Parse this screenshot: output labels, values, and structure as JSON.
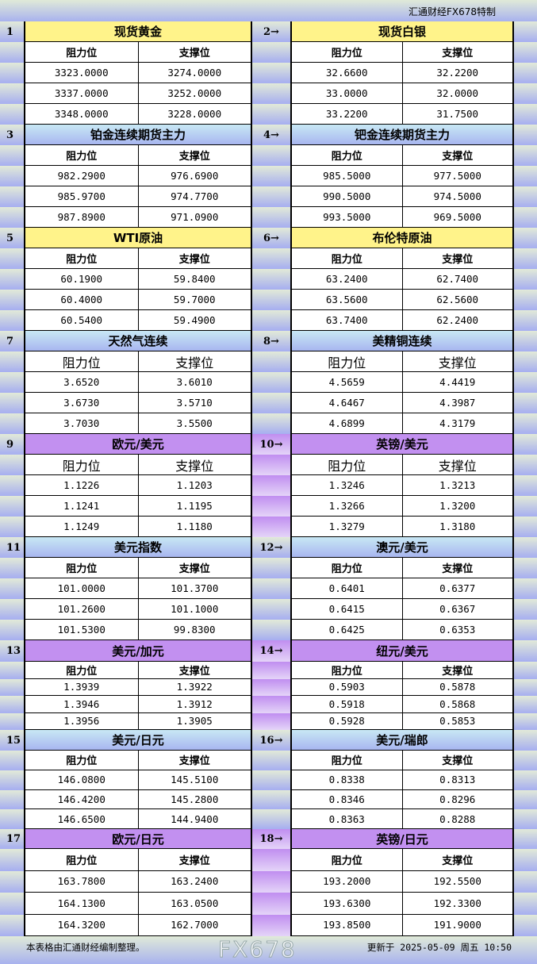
{
  "header": {
    "brand": "汇通财经FX678特制"
  },
  "colors": {
    "yellow": "#fff38a",
    "blue": "#b8d0f2",
    "purple": "#c290f0"
  },
  "labels": {
    "resistance": "阻力位",
    "support": "支撑位"
  },
  "blocks": [
    {
      "left": {
        "num": "1",
        "title": "现货黄金",
        "color": "yellow",
        "rows": [
          [
            "3323.0000",
            "3274.0000"
          ],
          [
            "3337.0000",
            "3252.0000"
          ],
          [
            "3348.0000",
            "3228.0000"
          ]
        ]
      },
      "right": {
        "num": "2→",
        "title": "现货白银",
        "color": "yellow",
        "rows": [
          [
            "32.6600",
            "32.2200"
          ],
          [
            "33.0000",
            "32.0000"
          ],
          [
            "33.2200",
            "31.7500"
          ]
        ]
      }
    },
    {
      "left": {
        "num": "3",
        "title": "铂金连续期货主力",
        "color": "blue",
        "rows": [
          [
            "982.2900",
            "976.6900"
          ],
          [
            "985.9700",
            "974.7700"
          ],
          [
            "987.8900",
            "971.0900"
          ]
        ]
      },
      "right": {
        "num": "4→",
        "title": "钯金连续期货主力",
        "color": "blue",
        "rows": [
          [
            "985.5000",
            "977.5000"
          ],
          [
            "990.5000",
            "974.5000"
          ],
          [
            "993.5000",
            "969.5000"
          ]
        ]
      }
    },
    {
      "left": {
        "num": "5",
        "title": "WTI原油",
        "color": "yellow",
        "rows": [
          [
            "60.1900",
            "59.8400"
          ],
          [
            "60.4000",
            "59.7000"
          ],
          [
            "60.5400",
            "59.4900"
          ]
        ]
      },
      "right": {
        "num": "6→",
        "title": "布伦特原油",
        "color": "yellow",
        "rows": [
          [
            "63.2400",
            "62.7400"
          ],
          [
            "63.5600",
            "62.5600"
          ],
          [
            "63.7400",
            "62.2400"
          ]
        ]
      }
    },
    {
      "left": {
        "num": "7",
        "title": "天然气连续",
        "color": "blue",
        "rows": [
          [
            "3.6520",
            "3.6010"
          ],
          [
            "3.6730",
            "3.5710"
          ],
          [
            "3.7030",
            "3.5500"
          ]
        ]
      },
      "right": {
        "num": "8→",
        "title": "美精铜连续",
        "color": "blue",
        "rows": [
          [
            "4.5659",
            "4.4419"
          ],
          [
            "4.6467",
            "4.3987"
          ],
          [
            "4.6899",
            "4.3179"
          ]
        ]
      }
    },
    {
      "left": {
        "num": "9",
        "title": "欧元/美元",
        "color": "purple",
        "rows": [
          [
            "1.1226",
            "1.1203"
          ],
          [
            "1.1241",
            "1.1195"
          ],
          [
            "1.1249",
            "1.1180"
          ]
        ]
      },
      "right": {
        "num": "10→",
        "title": "英镑/美元",
        "color": "purple",
        "rows": [
          [
            "1.3246",
            "1.3213"
          ],
          [
            "1.3266",
            "1.3200"
          ],
          [
            "1.3279",
            "1.3180"
          ]
        ]
      }
    },
    {
      "left": {
        "num": "11",
        "title": "美元指数",
        "color": "blue",
        "rows": [
          [
            "101.0000",
            "101.3700"
          ],
          [
            "101.2600",
            "101.1000"
          ],
          [
            "101.5300",
            "99.8300"
          ]
        ]
      },
      "right": {
        "num": "12→",
        "title": "澳元/美元",
        "color": "blue",
        "rows": [
          [
            "0.6401",
            "0.6377"
          ],
          [
            "0.6415",
            "0.6367"
          ],
          [
            "0.6425",
            "0.6353"
          ]
        ]
      }
    },
    {
      "left": {
        "num": "13",
        "title": "美元/加元",
        "color": "purple",
        "rows": [
          [
            "1.3939",
            "1.3922"
          ],
          [
            "1.3946",
            "1.3912"
          ],
          [
            "1.3956",
            "1.3905"
          ]
        ]
      },
      "right": {
        "num": "14→",
        "title": "纽元/美元",
        "color": "purple",
        "rows": [
          [
            "0.5903",
            "0.5878"
          ],
          [
            "0.5918",
            "0.5868"
          ],
          [
            "0.5928",
            "0.5853"
          ]
        ]
      }
    },
    {
      "left": {
        "num": "15",
        "title": "美元/日元",
        "color": "blue",
        "rows": [
          [
            "146.0800",
            "145.5100"
          ],
          [
            "146.4200",
            "145.2800"
          ],
          [
            "146.6500",
            "144.9400"
          ]
        ]
      },
      "right": {
        "num": "16→",
        "title": "美元/瑞郎",
        "color": "blue",
        "rows": [
          [
            "0.8338",
            "0.8313"
          ],
          [
            "0.8346",
            "0.8296"
          ],
          [
            "0.8363",
            "0.8288"
          ]
        ]
      }
    },
    {
      "left": {
        "num": "17",
        "title": "欧元/日元",
        "color": "purple",
        "rows": [
          [
            "163.7800",
            "163.2400"
          ],
          [
            "164.1300",
            "163.0500"
          ],
          [
            "164.3200",
            "162.7000"
          ]
        ]
      },
      "right": {
        "num": "18→",
        "title": "英镑/日元",
        "color": "purple",
        "rows": [
          [
            "193.2000",
            "192.5500"
          ],
          [
            "193.6300",
            "192.3300"
          ],
          [
            "193.8500",
            "191.9000"
          ]
        ]
      }
    }
  ],
  "footer": {
    "note": "本表格由汇通财经编制整理。",
    "updated": "更新于 2025-05-09 周五 10:50"
  },
  "watermark": "FX678"
}
